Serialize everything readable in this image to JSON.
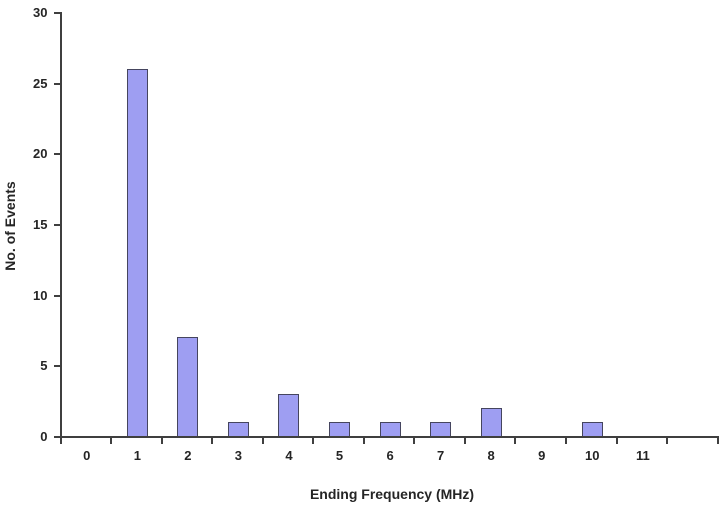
{
  "chart_data": {
    "type": "bar",
    "title": "",
    "xlabel": "Ending Frequency (MHz)",
    "ylabel": "No. of Events",
    "categories": [
      "0",
      "1",
      "2",
      "3",
      "4",
      "5",
      "6",
      "7",
      "8",
      "9",
      "10",
      "11",
      ""
    ],
    "values": [
      0,
      26,
      7,
      1,
      3,
      1,
      1,
      1,
      2,
      0,
      1,
      0,
      0
    ],
    "ylim": [
      0,
      30
    ],
    "yticks": [
      0,
      5,
      10,
      15,
      20,
      25,
      30
    ],
    "grid": false,
    "legend": "none",
    "colors": {
      "bar_fill": "#9e9ef2",
      "bar_border": "#45455e",
      "axis": "#3f3f3f",
      "text": "#252525",
      "background": "#ffffff"
    }
  }
}
